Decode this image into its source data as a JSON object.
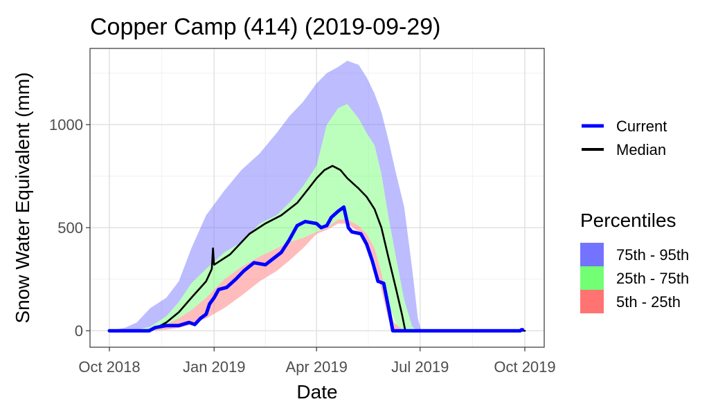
{
  "chart_data": {
    "type": "area",
    "title": "Copper Camp (414) (2019-09-29)",
    "xlabel": "Date",
    "ylabel": "Snow Water Equivalent (mm)",
    "xlim": [
      "2018-10-01",
      "2019-10-01"
    ],
    "ylim": [
      -80,
      1370
    ],
    "x_ticks": [
      {
        "date": "2018-10-01",
        "label": "Oct 2018"
      },
      {
        "date": "2019-01-01",
        "label": "Jan 2019"
      },
      {
        "date": "2019-04-01",
        "label": "Apr 2019"
      },
      {
        "date": "2019-07-01",
        "label": "Jul 2019"
      },
      {
        "date": "2019-10-01",
        "label": "Oct 2019"
      }
    ],
    "y_ticks": [
      0,
      500,
      1000
    ],
    "grid": true,
    "legend_position": "right",
    "legend_lines_title": "",
    "legend_bands_title": "Percentiles",
    "series": [
      {
        "name": "75th - 95th",
        "kind": "band",
        "color": "#6b6bff",
        "points": [
          [
            "2018-10-01",
            0,
            0
          ],
          [
            "2018-10-15",
            0,
            15
          ],
          [
            "2018-10-25",
            5,
            40
          ],
          [
            "2018-11-06",
            20,
            110
          ],
          [
            "2018-11-20",
            70,
            160
          ],
          [
            "2018-12-01",
            140,
            240
          ],
          [
            "2018-12-12",
            230,
            400
          ],
          [
            "2018-12-25",
            300,
            560
          ],
          [
            "2019-01-10",
            380,
            680
          ],
          [
            "2019-01-25",
            430,
            780
          ],
          [
            "2019-02-10",
            520,
            860
          ],
          [
            "2019-02-25",
            560,
            960
          ],
          [
            "2019-03-08",
            620,
            1040
          ],
          [
            "2019-03-20",
            700,
            1110
          ],
          [
            "2019-04-01",
            800,
            1200
          ],
          [
            "2019-04-10",
            1000,
            1250
          ],
          [
            "2019-04-20",
            1080,
            1280
          ],
          [
            "2019-04-28",
            1100,
            1310
          ],
          [
            "2019-05-08",
            1030,
            1290
          ],
          [
            "2019-05-15",
            960,
            1230
          ],
          [
            "2019-05-22",
            900,
            1150
          ],
          [
            "2019-05-28",
            760,
            1060
          ],
          [
            "2019-06-03",
            560,
            930
          ],
          [
            "2019-06-10",
            350,
            760
          ],
          [
            "2019-06-17",
            150,
            600
          ],
          [
            "2019-06-24",
            20,
            300
          ],
          [
            "2019-06-29",
            0,
            60
          ],
          [
            "2019-07-02",
            0,
            0
          ],
          [
            "2019-10-01",
            0,
            0
          ]
        ]
      },
      {
        "name": "25th - 75th",
        "kind": "band",
        "color": "#6bff6b",
        "points": [
          [
            "2018-10-01",
            0,
            0
          ],
          [
            "2018-10-15",
            0,
            0
          ],
          [
            "2018-10-25",
            0,
            5
          ],
          [
            "2018-11-06",
            5,
            20
          ],
          [
            "2018-11-20",
            30,
            70
          ],
          [
            "2018-12-01",
            60,
            140
          ],
          [
            "2018-12-12",
            100,
            230
          ],
          [
            "2018-12-25",
            160,
            300
          ],
          [
            "2019-01-10",
            250,
            380
          ],
          [
            "2019-01-25",
            310,
            430
          ],
          [
            "2019-02-10",
            360,
            520
          ],
          [
            "2019-02-25",
            400,
            560
          ],
          [
            "2019-03-08",
            430,
            620
          ],
          [
            "2019-03-20",
            450,
            700
          ],
          [
            "2019-04-01",
            480,
            800
          ],
          [
            "2019-04-10",
            500,
            1000
          ],
          [
            "2019-04-20",
            540,
            1080
          ],
          [
            "2019-04-28",
            540,
            1100
          ],
          [
            "2019-05-08",
            510,
            1030
          ],
          [
            "2019-05-15",
            470,
            960
          ],
          [
            "2019-05-22",
            400,
            900
          ],
          [
            "2019-05-28",
            280,
            760
          ],
          [
            "2019-06-03",
            130,
            560
          ],
          [
            "2019-06-10",
            30,
            350
          ],
          [
            "2019-06-17",
            0,
            150
          ],
          [
            "2019-06-24",
            0,
            20
          ],
          [
            "2019-06-29",
            0,
            0
          ],
          [
            "2019-10-01",
            0,
            0
          ]
        ]
      },
      {
        "name": "5th - 25th",
        "kind": "band",
        "color": "#ff6b6b",
        "points": [
          [
            "2018-10-01",
            0,
            0
          ],
          [
            "2018-10-25",
            0,
            0
          ],
          [
            "2018-11-06",
            0,
            5
          ],
          [
            "2018-11-20",
            5,
            30
          ],
          [
            "2018-12-01",
            15,
            60
          ],
          [
            "2018-12-12",
            30,
            100
          ],
          [
            "2018-12-25",
            60,
            160
          ],
          [
            "2019-01-10",
            110,
            250
          ],
          [
            "2019-01-25",
            170,
            310
          ],
          [
            "2019-02-10",
            240,
            360
          ],
          [
            "2019-02-25",
            290,
            400
          ],
          [
            "2019-03-08",
            340,
            430
          ],
          [
            "2019-03-20",
            400,
            450
          ],
          [
            "2019-04-01",
            470,
            480
          ],
          [
            "2019-04-10",
            490,
            500
          ],
          [
            "2019-04-20",
            520,
            540
          ],
          [
            "2019-04-28",
            520,
            540
          ],
          [
            "2019-05-08",
            480,
            510
          ],
          [
            "2019-05-15",
            430,
            470
          ],
          [
            "2019-05-22",
            340,
            400
          ],
          [
            "2019-05-28",
            200,
            280
          ],
          [
            "2019-06-03",
            60,
            130
          ],
          [
            "2019-06-08",
            0,
            40
          ],
          [
            "2019-06-10",
            0,
            30
          ],
          [
            "2019-06-17",
            0,
            0
          ],
          [
            "2019-10-01",
            0,
            0
          ]
        ]
      },
      {
        "name": "Median",
        "kind": "line",
        "color": "#000000",
        "points": [
          [
            "2018-10-01",
            0
          ],
          [
            "2018-11-01",
            0
          ],
          [
            "2018-11-10",
            10
          ],
          [
            "2018-11-20",
            40
          ],
          [
            "2018-12-01",
            90
          ],
          [
            "2018-12-12",
            160
          ],
          [
            "2018-12-25",
            240
          ],
          [
            "2018-12-30",
            300
          ],
          [
            "2018-12-31",
            400
          ],
          [
            "2019-01-01",
            320
          ],
          [
            "2019-01-15",
            370
          ],
          [
            "2019-02-01",
            470
          ],
          [
            "2019-02-15",
            520
          ],
          [
            "2019-03-01",
            560
          ],
          [
            "2019-03-15",
            620
          ],
          [
            "2019-03-25",
            690
          ],
          [
            "2019-04-01",
            740
          ],
          [
            "2019-04-08",
            780
          ],
          [
            "2019-04-15",
            800
          ],
          [
            "2019-04-22",
            780
          ],
          [
            "2019-04-28",
            740
          ],
          [
            "2019-05-08",
            690
          ],
          [
            "2019-05-15",
            650
          ],
          [
            "2019-05-22",
            590
          ],
          [
            "2019-05-28",
            500
          ],
          [
            "2019-06-03",
            360
          ],
          [
            "2019-06-10",
            200
          ],
          [
            "2019-06-15",
            80
          ],
          [
            "2019-06-18",
            0
          ],
          [
            "2019-10-01",
            0
          ]
        ]
      },
      {
        "name": "Current",
        "kind": "line",
        "color": "#0000ff",
        "points": [
          [
            "2018-10-01",
            0
          ],
          [
            "2018-11-05",
            0
          ],
          [
            "2018-11-10",
            15
          ],
          [
            "2018-11-20",
            25
          ],
          [
            "2018-12-01",
            25
          ],
          [
            "2018-12-10",
            40
          ],
          [
            "2018-12-15",
            30
          ],
          [
            "2018-12-20",
            60
          ],
          [
            "2018-12-25",
            80
          ],
          [
            "2018-12-28",
            130
          ],
          [
            "2019-01-01",
            160
          ],
          [
            "2019-01-05",
            200
          ],
          [
            "2019-01-12",
            210
          ],
          [
            "2019-01-20",
            250
          ],
          [
            "2019-01-27",
            290
          ],
          [
            "2019-02-05",
            330
          ],
          [
            "2019-02-15",
            320
          ],
          [
            "2019-02-22",
            350
          ],
          [
            "2019-03-01",
            380
          ],
          [
            "2019-03-08",
            440
          ],
          [
            "2019-03-15",
            510
          ],
          [
            "2019-03-22",
            530
          ],
          [
            "2019-04-01",
            520
          ],
          [
            "2019-04-05",
            500
          ],
          [
            "2019-04-10",
            510
          ],
          [
            "2019-04-14",
            550
          ],
          [
            "2019-04-20",
            580
          ],
          [
            "2019-04-25",
            600
          ],
          [
            "2019-04-29",
            500
          ],
          [
            "2019-05-02",
            480
          ],
          [
            "2019-05-10",
            470
          ],
          [
            "2019-05-15",
            420
          ],
          [
            "2019-05-20",
            340
          ],
          [
            "2019-05-25",
            240
          ],
          [
            "2019-05-30",
            230
          ],
          [
            "2019-06-04",
            90
          ],
          [
            "2019-06-07",
            0
          ],
          [
            "2019-09-27",
            0
          ],
          [
            "2019-09-28",
            5
          ],
          [
            "2019-09-29",
            5
          ]
        ]
      }
    ]
  }
}
